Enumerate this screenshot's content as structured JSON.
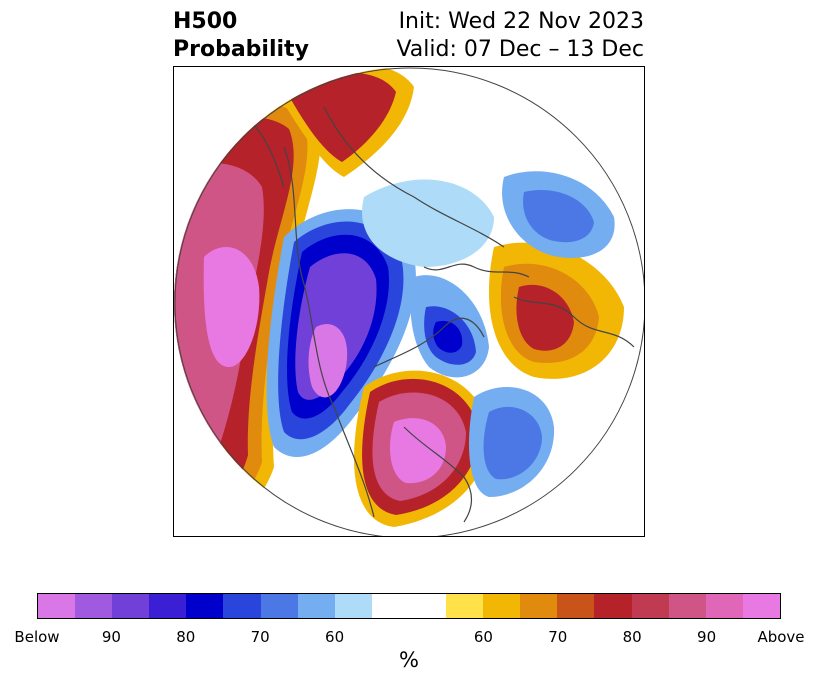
{
  "title": {
    "left_line1": "H500",
    "left_line2": "Probability",
    "right_line1": "Init: Wed 22 Nov 2023",
    "right_line2": "Valid: 07 Dec – 13 Dec"
  },
  "colorbar": {
    "below_colors": [
      "#d977e6",
      "#a05ae0",
      "#7040d8",
      "#3a1fd4",
      "#0000cc",
      "#2a45dc",
      "#4c78e6",
      "#74aef0",
      "#aedcf8"
    ],
    "neutral_color": "#ffffff",
    "above_colors": [
      "#ffe14a",
      "#f2b705",
      "#e08a0e",
      "#c9541a",
      "#b52229",
      "#c03a52",
      "#cf5586",
      "#e066b8",
      "#e879e2"
    ],
    "tick_labels": [
      "Below",
      "90",
      "80",
      "70",
      "60",
      "60",
      "70",
      "80",
      "90",
      "Above"
    ],
    "unit_label": "%"
  },
  "map": {
    "projection": "polar stereographic (north pole)",
    "fields": [
      "above-normal 500mb height probability",
      "below-normal 500mb height probability"
    ],
    "regions": [
      {
        "name": "north-pacific-ridge",
        "sign": "above",
        "peak": "Above"
      },
      {
        "name": "alaska-western-canada-trough",
        "sign": "below",
        "peak": "Below"
      },
      {
        "name": "eastern-us-ridge",
        "sign": "above",
        "peak": "Above"
      },
      {
        "name": "baffin-trough",
        "sign": "below",
        "peak": "80"
      },
      {
        "name": "scandinavia-ridge",
        "sign": "above",
        "peak": "80"
      },
      {
        "name": "siberia-trough",
        "sign": "below",
        "peak": "60"
      },
      {
        "name": "north-atlantic-trough",
        "sign": "below",
        "peak": "70"
      }
    ]
  }
}
